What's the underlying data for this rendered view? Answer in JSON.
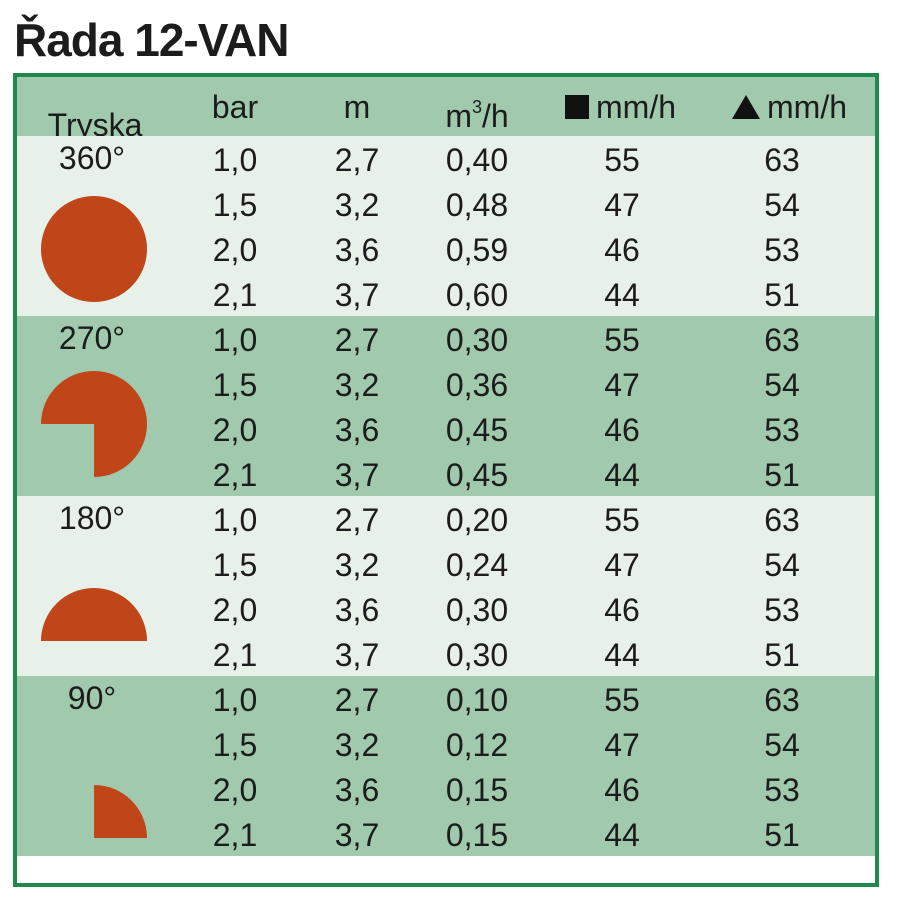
{
  "title": "Řada 12-VAN",
  "header": {
    "nozzle": "Tryska",
    "bar": "bar",
    "m": "m",
    "flow_base": "m",
    "flow_sup": "3",
    "flow_tail": "/h",
    "square_rate": "mm/h",
    "triangle_rate": "mm/h",
    "square_icon": "black-square-icon",
    "triangle_icon": "black-triangle-icon"
  },
  "colors": {
    "frame": "#1d8a4c",
    "band_dark": "#a0c9ad",
    "band_light": "#e7f0e9",
    "shape": "#c0461a"
  },
  "groups": [
    {
      "angle": "360°",
      "shape_icon": "full-circle-icon",
      "rows": [
        {
          "bar": "1,0",
          "m": "2,7",
          "flow": "0,40",
          "sq": "55",
          "tri": "63"
        },
        {
          "bar": "1,5",
          "m": "3,2",
          "flow": "0,48",
          "sq": "47",
          "tri": "54"
        },
        {
          "bar": "2,0",
          "m": "3,6",
          "flow": "0,59",
          "sq": "46",
          "tri": "53"
        },
        {
          "bar": "2,1",
          "m": "3,7",
          "flow": "0,60",
          "sq": "44",
          "tri": "51"
        }
      ]
    },
    {
      "angle": "270°",
      "shape_icon": "three-quarter-circle-icon",
      "rows": [
        {
          "bar": "1,0",
          "m": "2,7",
          "flow": "0,30",
          "sq": "55",
          "tri": "63"
        },
        {
          "bar": "1,5",
          "m": "3,2",
          "flow": "0,36",
          "sq": "47",
          "tri": "54"
        },
        {
          "bar": "2,0",
          "m": "3,6",
          "flow": "0,45",
          "sq": "46",
          "tri": "53"
        },
        {
          "bar": "2,1",
          "m": "3,7",
          "flow": "0,45",
          "sq": "44",
          "tri": "51"
        }
      ]
    },
    {
      "angle": "180°",
      "shape_icon": "half-circle-icon",
      "rows": [
        {
          "bar": "1,0",
          "m": "2,7",
          "flow": "0,20",
          "sq": "55",
          "tri": "63"
        },
        {
          "bar": "1,5",
          "m": "3,2",
          "flow": "0,24",
          "sq": "47",
          "tri": "54"
        },
        {
          "bar": "2,0",
          "m": "3,6",
          "flow": "0,30",
          "sq": "46",
          "tri": "53"
        },
        {
          "bar": "2,1",
          "m": "3,7",
          "flow": "0,30",
          "sq": "44",
          "tri": "51"
        }
      ]
    },
    {
      "angle": "90°",
      "shape_icon": "quarter-circle-icon",
      "rows": [
        {
          "bar": "1,0",
          "m": "2,7",
          "flow": "0,10",
          "sq": "55",
          "tri": "63"
        },
        {
          "bar": "1,5",
          "m": "3,2",
          "flow": "0,12",
          "sq": "47",
          "tri": "54"
        },
        {
          "bar": "2,0",
          "m": "3,6",
          "flow": "0,15",
          "sq": "46",
          "tri": "53"
        },
        {
          "bar": "2,1",
          "m": "3,7",
          "flow": "0,15",
          "sq": "44",
          "tri": "51"
        }
      ]
    }
  ]
}
